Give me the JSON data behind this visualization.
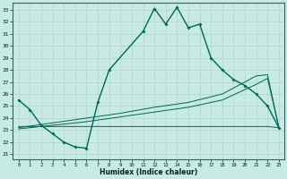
{
  "xlabel": "Humidex (Indice chaleur)",
  "bg_color": "#c8eae5",
  "grid_color": "#b0d4cc",
  "line_color": "#006655",
  "xlim": [
    -0.5,
    23.5
  ],
  "ylim": [
    20.6,
    33.6
  ],
  "yticks": [
    21,
    22,
    23,
    24,
    25,
    26,
    27,
    28,
    29,
    30,
    31,
    32,
    33
  ],
  "xticks": [
    0,
    1,
    2,
    3,
    4,
    5,
    6,
    7,
    8,
    9,
    10,
    11,
    12,
    13,
    14,
    15,
    16,
    17,
    18,
    19,
    20,
    21,
    22,
    23
  ],
  "main_x": [
    0,
    1,
    2,
    3,
    4,
    5,
    6,
    7,
    8,
    11,
    12,
    13,
    14,
    15,
    16,
    17,
    18,
    19,
    20,
    21,
    22,
    23
  ],
  "main_y": [
    25.5,
    24.7,
    23.4,
    22.7,
    22.0,
    21.6,
    21.5,
    25.3,
    28.0,
    31.2,
    33.1,
    31.8,
    33.2,
    31.5,
    31.8,
    29.0,
    28.0,
    27.2,
    26.7,
    26.0,
    25.0,
    23.2
  ],
  "flat_x": [
    0,
    1,
    2,
    3,
    4,
    5,
    6,
    7,
    8,
    9,
    10,
    11,
    12,
    13,
    14,
    15,
    16,
    17,
    18,
    19,
    20,
    21,
    22,
    23
  ],
  "flat_y": [
    23.3,
    23.3,
    23.3,
    23.3,
    23.3,
    23.3,
    23.3,
    23.3,
    23.3,
    23.3,
    23.3,
    23.3,
    23.3,
    23.3,
    23.3,
    23.3,
    23.3,
    23.3,
    23.3,
    23.3,
    23.3,
    23.3,
    23.3,
    23.2
  ],
  "rise1_x": [
    0,
    3,
    6,
    9,
    12,
    15,
    18,
    21,
    22,
    23
  ],
  "rise1_y": [
    23.1,
    23.4,
    23.7,
    24.1,
    24.5,
    24.9,
    25.5,
    26.8,
    27.3,
    23.2
  ],
  "rise2_x": [
    0,
    3,
    6,
    9,
    12,
    15,
    18,
    21,
    22,
    23
  ],
  "rise2_y": [
    23.2,
    23.6,
    24.0,
    24.4,
    24.9,
    25.3,
    26.0,
    27.5,
    27.6,
    23.2
  ]
}
